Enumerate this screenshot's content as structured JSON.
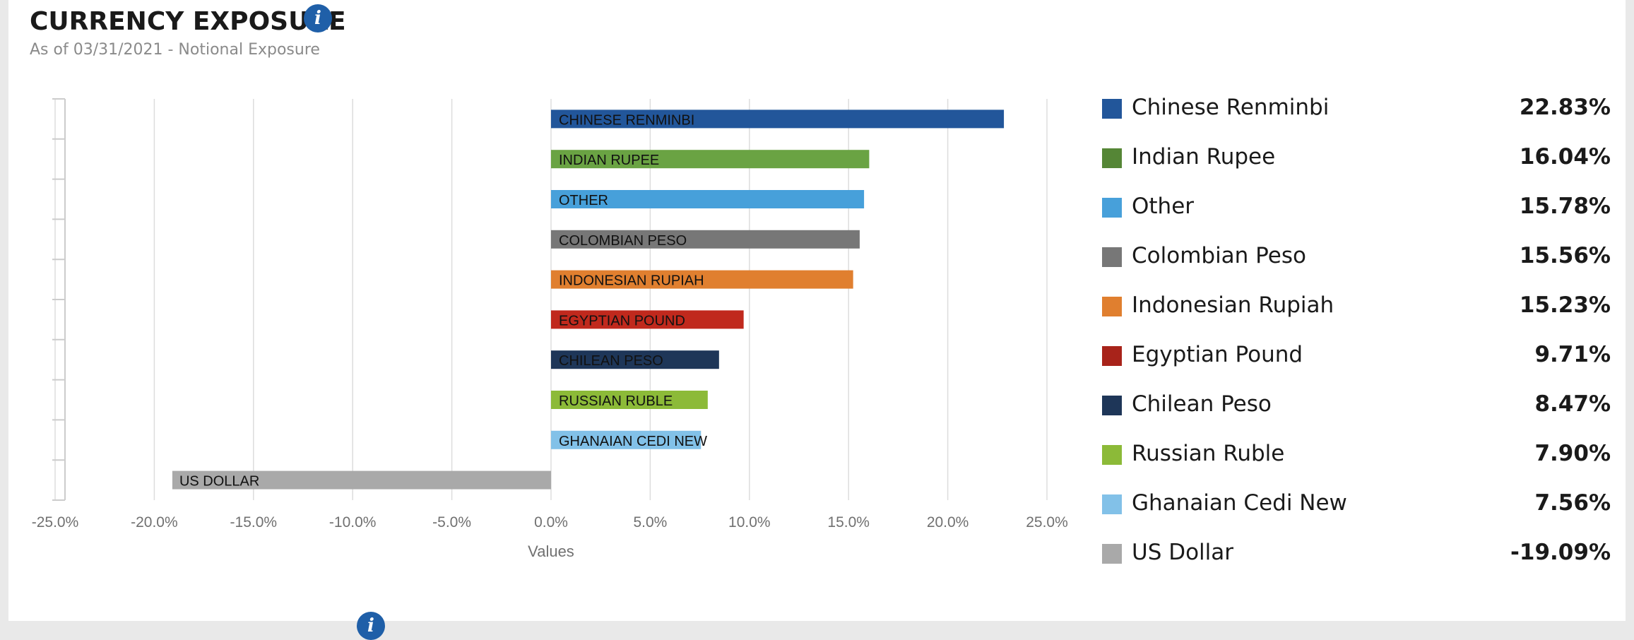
{
  "header": {
    "title": "CURRENCY EXPOSURE",
    "info_icon": "info-icon",
    "subtitle": "As of 03/31/2021 - Notional Exposure"
  },
  "chart_data": {
    "type": "bar",
    "orientation": "horizontal",
    "categories": [
      "CHINESE RENMINBI",
      "INDIAN RUPEE",
      "OTHER",
      "COLOMBIAN PESO",
      "INDONESIAN RUPIAH",
      "EGYPTIAN POUND",
      "CHILEAN PESO",
      "RUSSIAN RUBLE",
      "GHANAIAN CEDI NEW",
      "US DOLLAR"
    ],
    "values": [
      22.83,
      16.04,
      15.78,
      15.56,
      15.23,
      9.71,
      8.47,
      7.9,
      7.56,
      -19.09
    ],
    "colors": [
      "#22569a",
      "#6aa343",
      "#47a0da",
      "#777777",
      "#e07f2f",
      "#c0291d",
      "#1e3658",
      "#8cba38",
      "#82c1e8",
      "#a9a9a9"
    ],
    "xlim": [
      -25,
      25
    ],
    "xticks": [
      -25,
      -20,
      -15,
      -10,
      -5,
      0,
      5,
      10,
      15,
      20,
      25
    ],
    "xtick_labels": [
      "-25.0%",
      "-20.0%",
      "-15.0%",
      "-10.0%",
      "-5.0%",
      "0.0%",
      "5.0%",
      "10.0%",
      "15.0%",
      "20.0%",
      "25.0%"
    ],
    "xlabel": "Values",
    "grid": true,
    "legend_position": "right"
  },
  "legend": {
    "items": [
      {
        "label": "Chinese Renminbi",
        "value": "22.83%",
        "color": "#22569a"
      },
      {
        "label": "Indian Rupee",
        "value": "16.04%",
        "color": "#558636"
      },
      {
        "label": "Other",
        "value": "15.78%",
        "color": "#47a0da"
      },
      {
        "label": "Colombian Peso",
        "value": "15.56%",
        "color": "#777777"
      },
      {
        "label": "Indonesian Rupiah",
        "value": "15.23%",
        "color": "#e07f2f"
      },
      {
        "label": "Egyptian Pound",
        "value": "9.71%",
        "color": "#a8231a"
      },
      {
        "label": "Chilean Peso",
        "value": "8.47%",
        "color": "#1e3658"
      },
      {
        "label": "Russian Ruble",
        "value": "7.90%",
        "color": "#8cba38"
      },
      {
        "label": "Ghanaian Cedi New",
        "value": "7.56%",
        "color": "#82c1e8"
      },
      {
        "label": "US Dollar",
        "value": "-19.09%",
        "color": "#a9a9a9"
      }
    ]
  }
}
